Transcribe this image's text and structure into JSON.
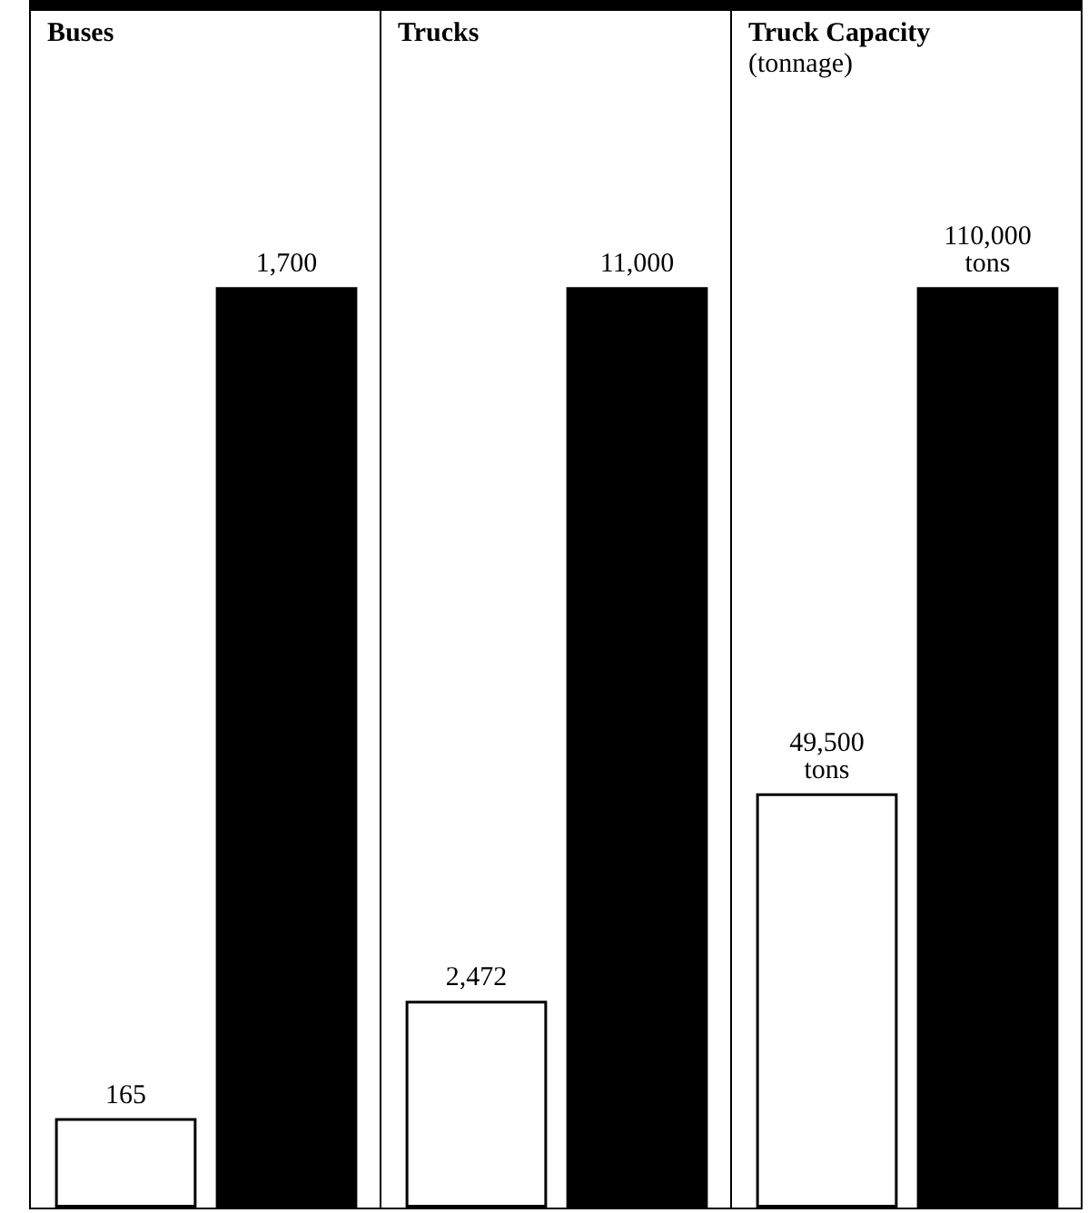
{
  "chart_data": [
    {
      "type": "bar",
      "title": "Buses",
      "categories": [
        null,
        null
      ],
      "values": [
        165,
        1700
      ],
      "colors": [
        "#ffffff",
        "#000000"
      ],
      "value_labels": [
        "165",
        "1,700"
      ]
    },
    {
      "type": "bar",
      "title": "Trucks",
      "categories": [
        null,
        null
      ],
      "values": [
        2472,
        11000
      ],
      "colors": [
        "#ffffff",
        "#000000"
      ],
      "value_labels": [
        "2,472",
        "11,000"
      ]
    },
    {
      "type": "bar",
      "title": "Truck Capacity",
      "subtitle": "(tonnage)",
      "categories": [
        null,
        null
      ],
      "values": [
        49500,
        110000
      ],
      "colors": [
        "#ffffff",
        "#000000"
      ],
      "value_labels": [
        "49,500\ntons",
        "110,000\ntons"
      ]
    }
  ]
}
